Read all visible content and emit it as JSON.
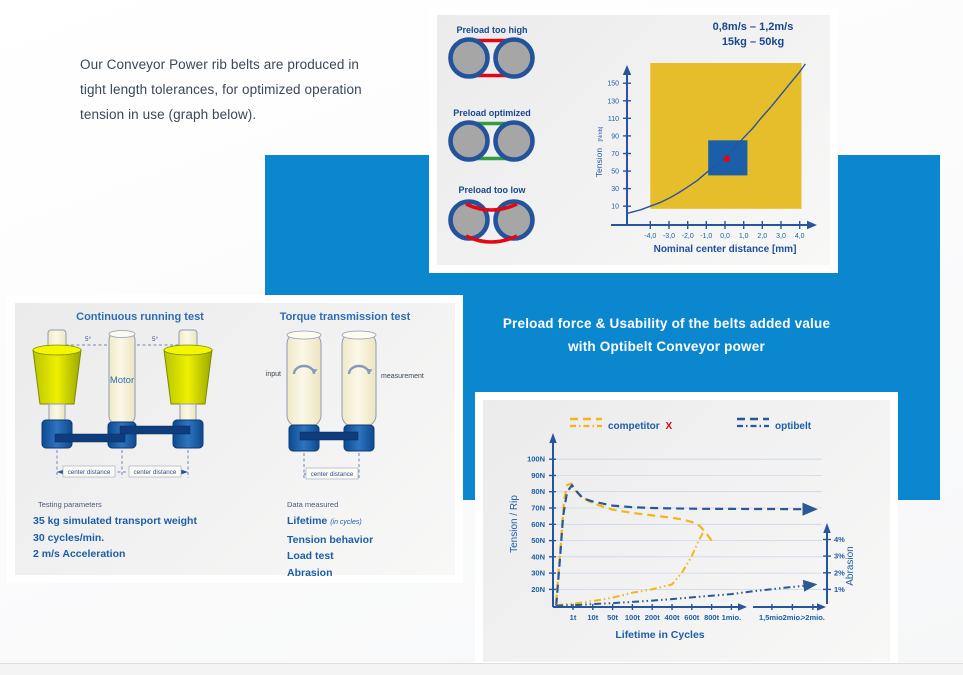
{
  "intro": {
    "lines": [
      "Our Conveyor Power rib belts are produced in",
      "tight length tolerances, for optimized operation",
      "tension in use (graph below)."
    ]
  },
  "banner": {
    "line1": "Preload force & Usability of the belts added value",
    "line2": "with Optibelt Conveyor power"
  },
  "colors": {
    "banner_blue": "#0b87cf",
    "dark_blue": "#1d5da8",
    "axis_blue": "#27559b",
    "yellow": "#e6bd2a",
    "red": "#e30613",
    "green": "#2f9e3f"
  },
  "preload_panel": {
    "speed_range": "0,8m/s – 1,2m/s",
    "load_range": "15kg – 50kg",
    "items": [
      {
        "label": "Preload too high"
      },
      {
        "label": "Preload optimized"
      },
      {
        "label": "Preload too low"
      }
    ]
  },
  "test_panel": {
    "continuous_test": {
      "title": "Continuous running test",
      "motor_label": "Motor",
      "angle_left": "5°",
      "angle_right": "5°",
      "center_distance_left": "center distance",
      "center_distance_right": "center distance"
    },
    "torque_test": {
      "title": "Torque transmission test",
      "input_label": "input",
      "measurement_label": "measurement",
      "center_distance": "center distance"
    },
    "testing_parameters": {
      "heading": "Testing parameters",
      "lines": [
        "35 kg simulated transport weight",
        "30 cycles/min.",
        "2 m/s Acceleration"
      ]
    },
    "data_measured": {
      "heading": "Data measured",
      "lifetime_label": "Lifetime",
      "lifetime_note": "(in cycles)",
      "lines": [
        "Tension behavior",
        "Load test",
        "Abrasion"
      ]
    }
  },
  "chart_data": [
    {
      "id": "preload-tension-chart",
      "type": "line",
      "xlabel": "Nominal center distance [mm]",
      "ylabel": "Tension",
      "ylabel_unit": "[N/rib]",
      "xticks": [
        "-4,0",
        "-3,0",
        "-2,0",
        "-1,0",
        "0,0",
        "1,0",
        "2,0",
        "3,0",
        "4,0"
      ],
      "xtick_values": [
        -4,
        -3,
        -2,
        -1,
        0,
        1,
        2,
        3,
        4
      ],
      "yticks": [
        "150",
        "130",
        "110",
        "90",
        "70",
        "50",
        "30",
        "10"
      ],
      "ytick_values": [
        150,
        130,
        110,
        90,
        70,
        50,
        30,
        10
      ],
      "xlim": [
        -5.5,
        4.6
      ],
      "ylim": [
        0,
        180
      ],
      "grid": false,
      "operating_window": {
        "x_range": [
          -4,
          4.1
        ],
        "tension_range": [
          7,
          173
        ],
        "color": "#e6bd2a"
      },
      "optimal_window": {
        "x_range": [
          -0.9,
          1.2
        ],
        "tension_range": [
          45,
          85
        ],
        "color": "#1b5fa8"
      },
      "optimal_point": {
        "x": 0.1,
        "tension": 64,
        "color": "#e30613"
      },
      "curve": {
        "name": "tension vs nominal center distance",
        "color": "#33619f",
        "points": [
          [
            -5.2,
            2
          ],
          [
            -4.5,
            6
          ],
          [
            -4,
            10
          ],
          [
            -3.5,
            14
          ],
          [
            -3,
            19
          ],
          [
            -2.5,
            25
          ],
          [
            -2,
            32
          ],
          [
            -1.5,
            39
          ],
          [
            -1,
            48
          ],
          [
            -0.5,
            56
          ],
          [
            0,
            65
          ],
          [
            0.5,
            76
          ],
          [
            1,
            88
          ],
          [
            1.5,
            99
          ],
          [
            2,
            112
          ],
          [
            2.5,
            124
          ],
          [
            3,
            137
          ],
          [
            3.5,
            150
          ],
          [
            4,
            163
          ],
          [
            4.3,
            172
          ]
        ]
      }
    },
    {
      "id": "lifetime-chart",
      "type": "line",
      "xlabel": "Lifetime in Cycles",
      "ylabel_left": "Tension / Rip",
      "ylabel_right": "Abrasion",
      "xticks": [
        "1t",
        "10t",
        "50t",
        "100t",
        "200t",
        "400t",
        "600t",
        "800t",
        "1mio.",
        "1,5mio.",
        "2mio.",
        ">2mio."
      ],
      "axis_break_between": [
        "1mio.",
        "1,5mio."
      ],
      "yticks_left": [
        "100N",
        "90N",
        "80N",
        "70N",
        "60N",
        "50N",
        "40N",
        "30N",
        "20N"
      ],
      "yticks_right": [
        "4%",
        "3%",
        "2%",
        "1%"
      ],
      "legend": [
        {
          "name": "competitor",
          "highlight": "X",
          "color": "#f2b61b",
          "text_color": "#1d5da8",
          "highlight_color": "#e30613"
        },
        {
          "name": "optibelt",
          "color": "#2b5894",
          "text_color": "#1d5da8"
        }
      ],
      "series": [
        {
          "name": "competitor tension",
          "axis": "left",
          "unit": "N",
          "style": "dashed",
          "color": "#f2b61b",
          "points": [
            [
              -0.85,
              12
            ],
            [
              -0.6,
              50
            ],
            [
              -0.45,
              75
            ],
            [
              -0.3,
              84
            ],
            [
              -0.1,
              85
            ],
            [
              0.1,
              81
            ],
            [
              0.4,
              77
            ],
            [
              1,
              73
            ],
            [
              2,
              69
            ],
            [
              3,
              67
            ],
            [
              4,
              65.5
            ],
            [
              5,
              64
            ],
            [
              5.5,
              63
            ],
            [
              6,
              61.5
            ],
            [
              6.4,
              59
            ],
            [
              6.7,
              55
            ],
            [
              7,
              50
            ]
          ]
        },
        {
          "name": "optibelt tension",
          "axis": "left",
          "unit": "N",
          "style": "dashed",
          "color": "#2b5894",
          "arrow_end": true,
          "points": [
            [
              -0.85,
              10
            ],
            [
              -0.65,
              40
            ],
            [
              -0.5,
              65
            ],
            [
              -0.3,
              80
            ],
            [
              -0.05,
              84
            ],
            [
              0.2,
              80
            ],
            [
              0.5,
              76
            ],
            [
              1,
              74
            ],
            [
              2,
              71.5
            ],
            [
              3,
              70.5
            ],
            [
              4,
              70
            ],
            [
              5,
              69.8
            ],
            [
              6,
              69.6
            ],
            [
              7,
              69.5
            ],
            [
              8,
              69.5
            ],
            [
              9,
              69.4
            ],
            [
              10,
              69.4
            ],
            [
              11,
              69.3
            ],
            [
              12,
              69.3
            ]
          ]
        },
        {
          "name": "competitor abrasion",
          "axis": "right",
          "unit": "%",
          "style": "dash-dot-dot",
          "color": "#f2b61b",
          "points": [
            [
              -0.85,
              0.05
            ],
            [
              0,
              0.15
            ],
            [
              1,
              0.3
            ],
            [
              2,
              0.5
            ],
            [
              3,
              0.8
            ],
            [
              4,
              1.0
            ],
            [
              5,
              1.3
            ],
            [
              5.5,
              2.0
            ],
            [
              6,
              3.0
            ],
            [
              6.3,
              3.8
            ],
            [
              6.6,
              4.5
            ]
          ]
        },
        {
          "name": "optibelt abrasion",
          "axis": "right",
          "unit": "%",
          "style": "dash-dot-dot",
          "color": "#2b5894",
          "arrow_end": true,
          "points": [
            [
              -0.85,
              0.02
            ],
            [
              0,
              0.05
            ],
            [
              1,
              0.12
            ],
            [
              2,
              0.18
            ],
            [
              3,
              0.25
            ],
            [
              4,
              0.33
            ],
            [
              5,
              0.42
            ],
            [
              6,
              0.52
            ],
            [
              7,
              0.62
            ],
            [
              8,
              0.72
            ],
            [
              9,
              0.88
            ],
            [
              10,
              1.02
            ],
            [
              11,
              1.15
            ],
            [
              12,
              1.28
            ]
          ]
        }
      ]
    }
  ]
}
